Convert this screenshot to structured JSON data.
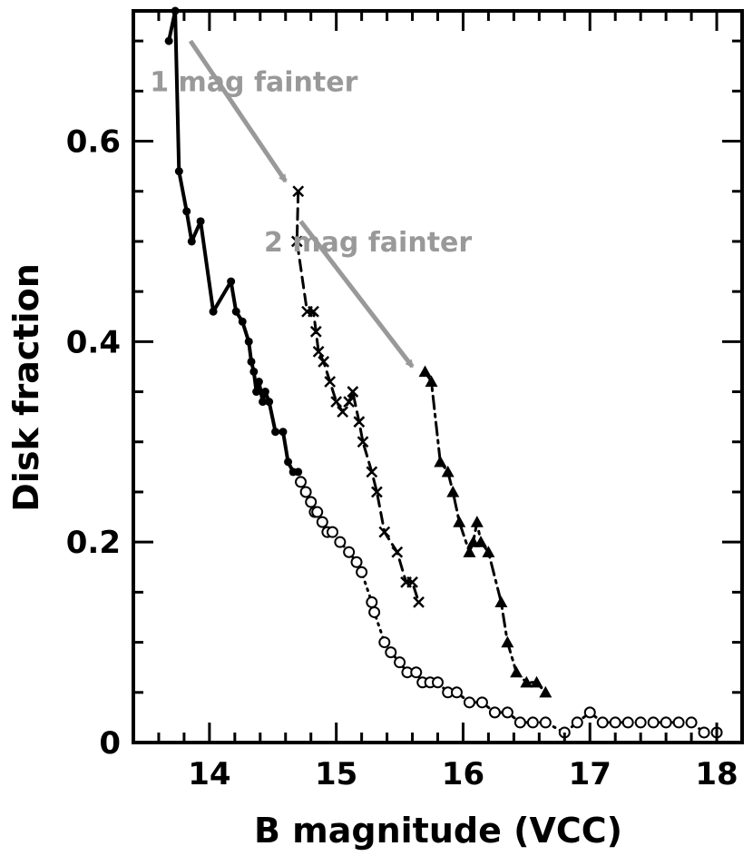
{
  "chart_data": {
    "type": "scatter",
    "title": "",
    "xlabel": "B magnitude (VCC)",
    "ylabel": "Disk fraction",
    "xlim": [
      13.4,
      18.2
    ],
    "ylim": [
      0,
      0.73
    ],
    "xticks": [
      "14",
      "15",
      "16",
      "17",
      "18"
    ],
    "yticks": [
      "0",
      "0.2",
      "0.4",
      "0.6"
    ],
    "legend": "none",
    "grid": false,
    "colors": {
      "axis": "#000000",
      "data": "#000000",
      "annotation": "#999999"
    },
    "series": [
      {
        "marker": "filled-circle",
        "line": "solid",
        "x": [
          13.68,
          13.73,
          13.76,
          13.82,
          13.86,
          13.93,
          14.03,
          14.17,
          14.21,
          14.26,
          14.31,
          14.33,
          14.35,
          14.37,
          14.39,
          14.42,
          14.44,
          14.47,
          14.52,
          14.58,
          14.62,
          14.66,
          14.7
        ],
        "y": [
          0.7,
          0.73,
          0.57,
          0.53,
          0.5,
          0.52,
          0.43,
          0.46,
          0.43,
          0.42,
          0.4,
          0.38,
          0.37,
          0.35,
          0.36,
          0.34,
          0.35,
          0.34,
          0.31,
          0.31,
          0.28,
          0.27,
          0.27
        ]
      },
      {
        "marker": "open-circle",
        "line": "dotted",
        "x": [
          14.72,
          14.76,
          14.8,
          14.83,
          14.85,
          14.89,
          14.93,
          14.97,
          15.03,
          15.1,
          15.16,
          15.2,
          15.28,
          15.3,
          15.38,
          15.43,
          15.5,
          15.56,
          15.63,
          15.68,
          15.74,
          15.8,
          15.88,
          15.95,
          16.05,
          16.15,
          16.25,
          16.35,
          16.45,
          16.55,
          16.65,
          16.8,
          16.9,
          17.0,
          17.1,
          17.2,
          17.3,
          17.4,
          17.5,
          17.6,
          17.7,
          17.8,
          17.9,
          18.0
        ],
        "y": [
          0.26,
          0.25,
          0.24,
          0.23,
          0.23,
          0.22,
          0.21,
          0.21,
          0.2,
          0.19,
          0.18,
          0.17,
          0.14,
          0.13,
          0.1,
          0.09,
          0.08,
          0.07,
          0.07,
          0.06,
          0.06,
          0.06,
          0.05,
          0.05,
          0.04,
          0.04,
          0.03,
          0.03,
          0.02,
          0.02,
          0.02,
          0.01,
          0.02,
          0.03,
          0.02,
          0.02,
          0.02,
          0.02,
          0.02,
          0.02,
          0.02,
          0.02,
          0.01,
          0.01
        ]
      },
      {
        "marker": "cross",
        "line": "dashed",
        "x": [
          14.7,
          14.69,
          14.77,
          14.82,
          14.84,
          14.86,
          14.9,
          14.95,
          15.0,
          15.05,
          15.1,
          15.13,
          15.18,
          15.21,
          15.28,
          15.32,
          15.38,
          15.48,
          15.55,
          15.6,
          15.65
        ],
        "y": [
          0.55,
          0.5,
          0.43,
          0.43,
          0.41,
          0.39,
          0.38,
          0.36,
          0.34,
          0.33,
          0.34,
          0.35,
          0.32,
          0.3,
          0.27,
          0.25,
          0.21,
          0.19,
          0.16,
          0.16,
          0.14
        ]
      },
      {
        "marker": "filled-triangle",
        "line": "dash-dot",
        "x": [
          15.7,
          15.75,
          15.82,
          15.88,
          15.92,
          15.97,
          16.05,
          16.08,
          16.11,
          16.14,
          16.2,
          16.3,
          16.35,
          16.42,
          16.5,
          16.58,
          16.65
        ],
        "y": [
          0.37,
          0.36,
          0.28,
          0.27,
          0.25,
          0.22,
          0.19,
          0.2,
          0.22,
          0.2,
          0.19,
          0.14,
          0.1,
          0.07,
          0.06,
          0.06,
          0.05
        ]
      }
    ],
    "annotations": [
      {
        "text": "1 mag fainter",
        "arrow_from": [
          13.85,
          0.7
        ],
        "arrow_to": [
          14.6,
          0.56
        ],
        "text_at": [
          14.35,
          0.65
        ]
      },
      {
        "text": "2 mag fainter",
        "arrow_from": [
          14.72,
          0.52
        ],
        "arrow_to": [
          15.6,
          0.375
        ],
        "text_at": [
          15.25,
          0.49
        ]
      }
    ]
  }
}
